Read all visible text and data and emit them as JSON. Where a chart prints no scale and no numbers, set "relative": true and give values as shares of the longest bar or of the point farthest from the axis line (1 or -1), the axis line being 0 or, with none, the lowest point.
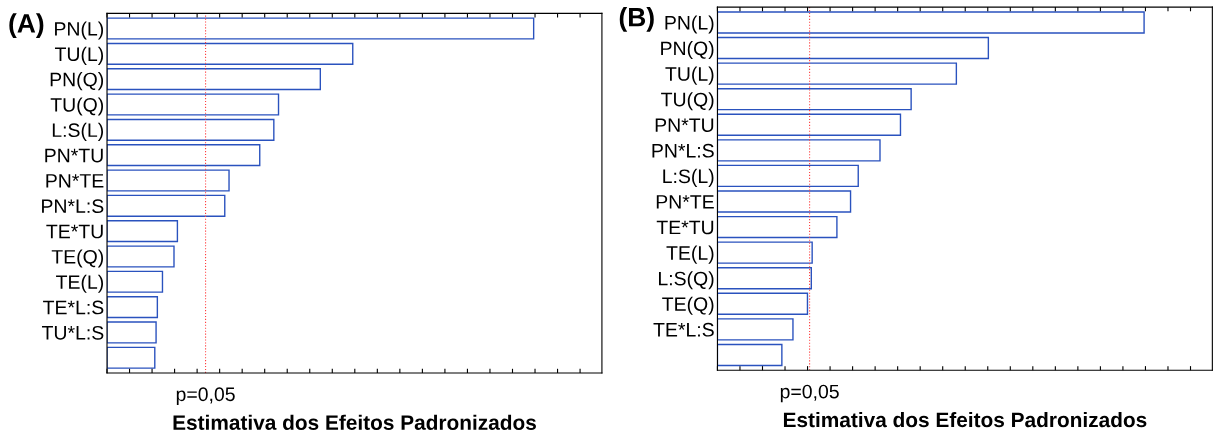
{
  "chart_data": [
    {
      "type": "bar",
      "orientation": "horizontal",
      "relative": true,
      "title": "(A)",
      "xlabel": "Estimativa dos Efeitos Padronizados",
      "categories": [
        "PN(L)",
        "TU(L)",
        "PN(Q)",
        "TU(Q)",
        "L:S(L)",
        "PN*TU",
        "PN*TE",
        "PN*L:S",
        "TE*TU",
        "TE(Q)",
        "TE(L)",
        "TE*L:S",
        "TU*L:S",
        null
      ],
      "series": [
        {
          "color": "#2a52be",
          "values": [
            1,
            0.576,
            0.5,
            0.402,
            0.391,
            0.358,
            0.286,
            0.276,
            0.165,
            0.157,
            0.13,
            0.118,
            0.115,
            0.112
          ]
        }
      ],
      "annotations": [
        "p=0,05"
      ],
      "ref_lines": [
        {
          "axis": "x",
          "value": 0.231,
          "color": "#ff4040",
          "line_style": "dotted"
        }
      ]
    },
    {
      "type": "bar",
      "orientation": "horizontal",
      "relative": true,
      "title": "(B)",
      "xlabel": "Estimativa dos Efeitos Padronizados",
      "categories": [
        "PN(L)",
        "PN(Q)",
        "TU(L)",
        "TU(Q)",
        "PN*TU",
        "PN*L:S",
        "L:S(L)",
        "PN*TE",
        "TE*TU",
        "TE(L)",
        "L:S(Q)",
        "TE(Q)",
        "TE*L:S",
        null
      ],
      "series": [
        {
          "color": "#2a52be",
          "values": [
            1,
            0.635,
            0.56,
            0.454,
            0.429,
            0.381,
            0.33,
            0.312,
            0.28,
            0.222,
            0.22,
            0.211,
            0.177,
            0.151
          ]
        }
      ],
      "annotations": [
        "p=0,05"
      ],
      "ref_lines": [
        {
          "axis": "x",
          "value": 0.216,
          "color": "#ff4040",
          "line_style": "dotted"
        }
      ]
    }
  ]
}
